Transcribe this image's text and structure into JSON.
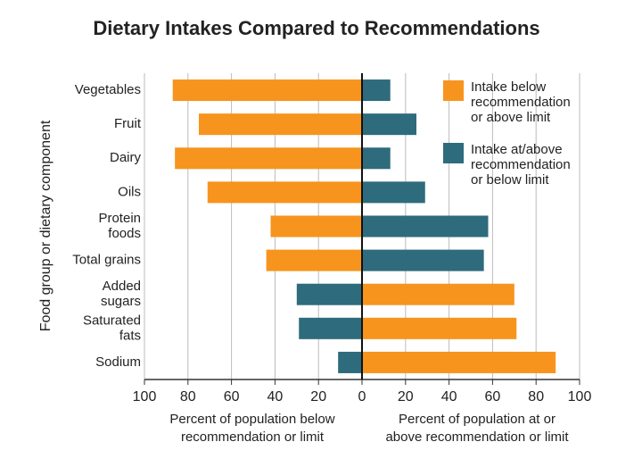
{
  "chart_data": {
    "type": "diverging-bar",
    "title": "Dietary Intakes Compared to Recommendations",
    "y_label": "Food group or dietary component",
    "x_label_left": [
      "Percent of population below",
      "recommendation or limit"
    ],
    "x_label_right": [
      "Percent of population at or",
      "above recommendation or limit"
    ],
    "categories": [
      "Vegetables",
      "Fruit",
      "Dairy",
      "Oils",
      [
        "Protein",
        "foods"
      ],
      "Total grains",
      [
        "Added",
        "sugars"
      ],
      [
        "Saturated",
        "fats"
      ],
      "Sodium"
    ],
    "series": [
      {
        "name": [
          "Intake below",
          "recommendation",
          "or above limit"
        ],
        "color": "#f7941d",
        "values": [
          -87,
          -75,
          -86,
          -71,
          -42,
          -44,
          70,
          71,
          89
        ]
      },
      {
        "name": [
          "Intake at/above",
          "recommendation",
          "or below limit"
        ],
        "color": "#2e6b7c",
        "values": [
          13,
          25,
          13,
          29,
          58,
          56,
          -30,
          -29,
          -11
        ]
      }
    ],
    "xlim": [
      -100,
      100
    ],
    "xticks": [
      {
        "value": -100,
        "label": "100"
      },
      {
        "value": -80,
        "label": "80"
      },
      {
        "value": -60,
        "label": "60"
      },
      {
        "value": -40,
        "label": "40"
      },
      {
        "value": -20,
        "label": "20"
      },
      0,
      20,
      40,
      60,
      80,
      100
    ],
    "grid": true
  }
}
